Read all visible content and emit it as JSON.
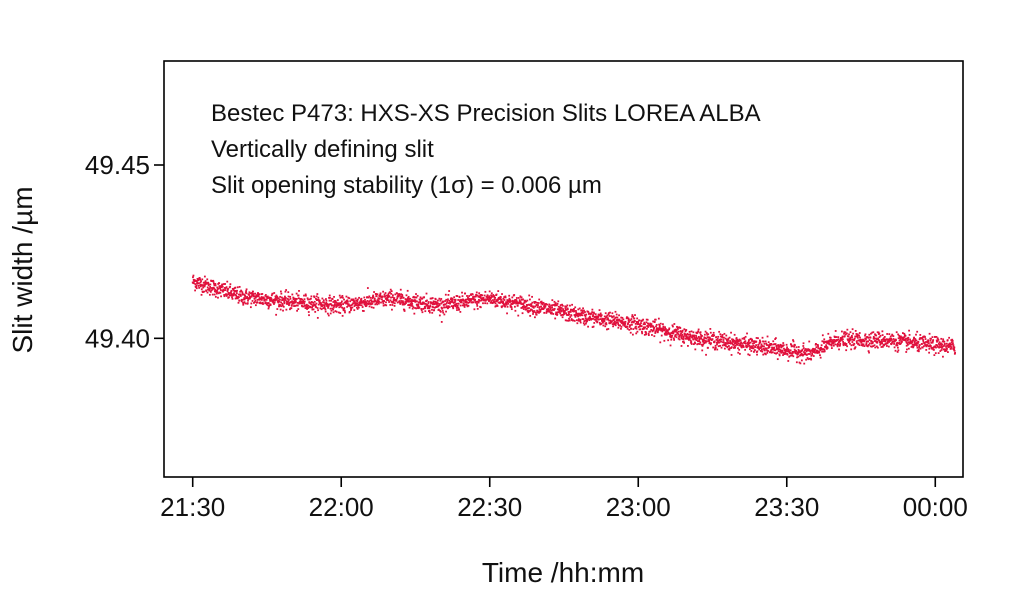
{
  "chart_data": {
    "type": "scatter",
    "annotation_lines": [
      "Bestec P473: HXS-XS Precision Slits LOREA ALBA",
      "Vertically defining slit",
      "Slit opening stability (1σ) = 0.006 µm"
    ],
    "xlabel": "Time /hh:mm",
    "ylabel": "Slit width /µm",
    "x_tick_labels": [
      "21:30",
      "22:00",
      "22:30",
      "23:00",
      "23:30",
      "00:00"
    ],
    "x_ticks_minutes": [
      0,
      30,
      60,
      90,
      120,
      150
    ],
    "y_tick_values": [
      49.4,
      49.45
    ],
    "y_tick_labels": [
      "49.40",
      "49.45"
    ],
    "xlim_minutes": [
      -5.8,
      155.6
    ],
    "ylim": [
      49.36,
      49.48
    ],
    "grid": false,
    "marker_color": "#e0103c",
    "series": [
      {
        "time_minutes": [
          0,
          10,
          20,
          30,
          40,
          50,
          60,
          70,
          80,
          90,
          100,
          110,
          120,
          125,
          130,
          140,
          150,
          154
        ],
        "slit_width": [
          49.4165,
          49.412,
          49.4105,
          49.4095,
          49.4115,
          49.4095,
          49.4115,
          49.409,
          49.406,
          49.404,
          49.4005,
          49.3985,
          49.3965,
          49.3955,
          49.3995,
          49.3995,
          49.398,
          49.3975
        ],
        "sigma": 0.0012
      }
    ]
  }
}
